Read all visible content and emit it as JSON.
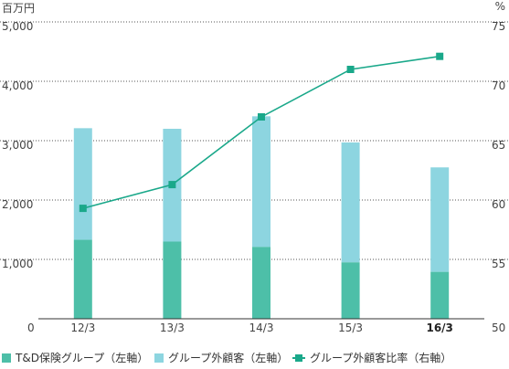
{
  "chart_data": {
    "type": "bar+line",
    "unit_left": "百万円",
    "unit_right": "%",
    "categories": [
      "12/3",
      "13/3",
      "14/3",
      "15/3",
      "16/3"
    ],
    "highlight_category": "16/3",
    "left_axis": {
      "ylim": [
        0,
        5000
      ],
      "ticks": [
        "0",
        "1,000",
        "2,000",
        "3,000",
        "4,000",
        "5,000"
      ]
    },
    "right_axis": {
      "ylim": [
        50,
        75
      ],
      "ticks": [
        "50",
        "55",
        "60",
        "65",
        "70",
        "75"
      ]
    },
    "series": [
      {
        "name": "T&D保険グループ（左軸）",
        "kind": "bar",
        "axis": "left",
        "color": "#4dbfa8",
        "values": [
          1330,
          1300,
          1210,
          950,
          790
        ]
      },
      {
        "name": "グループ外顧客（左軸）",
        "kind": "bar",
        "axis": "left",
        "color": "#8dd5e0",
        "values": [
          1880,
          1900,
          2200,
          2020,
          1760
        ]
      },
      {
        "name": "グループ外顧客比率（右軸）",
        "kind": "line",
        "axis": "right",
        "color": "#1aa88a",
        "values": [
          59.3,
          61.3,
          67.0,
          71.0,
          72.1
        ]
      }
    ],
    "grid": true
  }
}
